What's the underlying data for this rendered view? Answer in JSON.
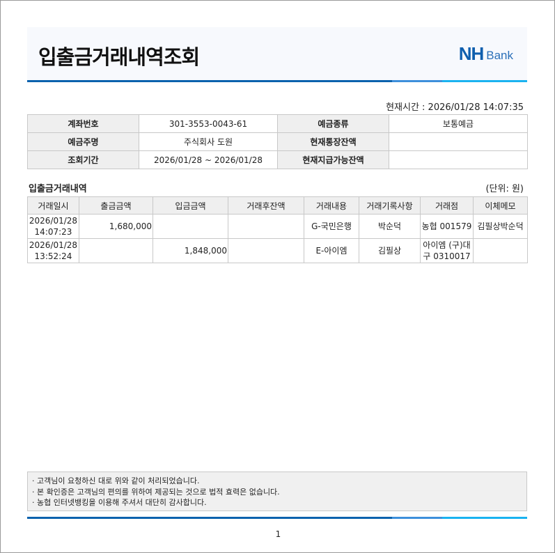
{
  "header": {
    "title": "입출금거래내역조회",
    "logo_nh": "NH",
    "logo_bank": "Bank",
    "brand_color": "#0f5fae"
  },
  "current_time": "현재시간 : 2026/01/28 14:07:35",
  "info": {
    "rows": [
      {
        "l1": "계좌번호",
        "v1": "301-3553-0043-61",
        "l2": "예금종류",
        "v2": "보통예금"
      },
      {
        "l1": "예금주명",
        "v1": "주식회사 도원",
        "l2": "현재통장잔액",
        "v2": ""
      },
      {
        "l1": "조회기간",
        "v1": "2026/01/28 ~ 2026/01/28",
        "l2": "현재지급가능잔액",
        "v2": ""
      }
    ]
  },
  "section": {
    "title": "입출금거래내역",
    "unit": "(단위: 원)"
  },
  "transactions": {
    "columns": [
      "거래일시",
      "출금금액",
      "입금금액",
      "거래후잔액",
      "거래내용",
      "거래기록사항",
      "거래점",
      "이체메모"
    ],
    "rows": [
      {
        "date": "2026/01/28",
        "time": "14:07:23",
        "out": "1,680,000",
        "in": "",
        "balance": "",
        "content": "G-국민은행",
        "record": "박순덕",
        "branch": "농협 001579",
        "memo": "김필상박순덕"
      },
      {
        "date": "2026/01/28",
        "time": "13:52:24",
        "out": "",
        "in": "1,848,000",
        "balance": "",
        "content": "E-아이엠",
        "record": "김필상",
        "branch": "아이엠 (구)대구 0310017",
        "memo": ""
      }
    ]
  },
  "notes": [
    "· 고객님이 요청하신 대로 위와 같이 처리되었습니다.",
    "· 본 확인증은 고객님의 편의를 위하여 제공되는 것으로 법적 효력은 없습니다.",
    "· 농협 인터넷뱅킹을 이용해 주셔서 대단히 감사합니다."
  ],
  "page_number": "1"
}
